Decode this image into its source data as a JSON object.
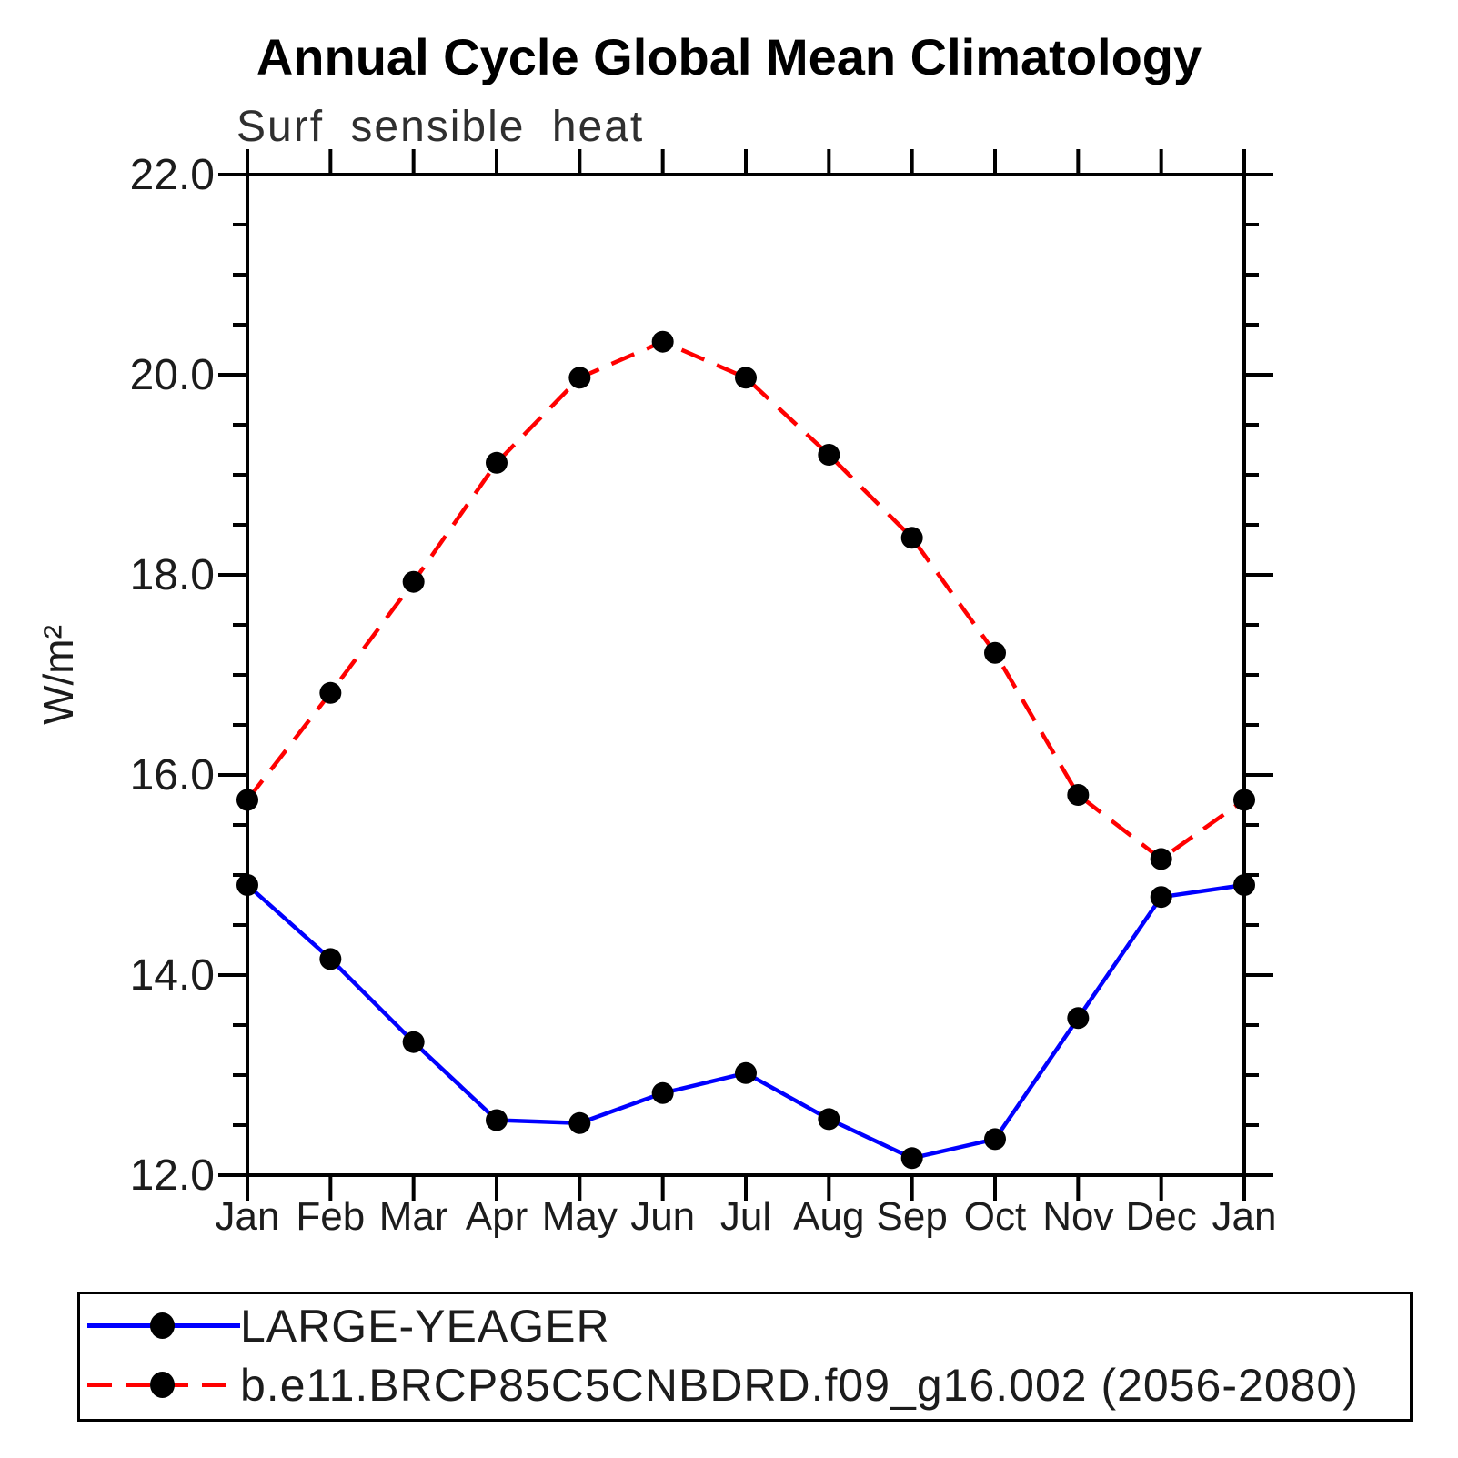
{
  "chart_data": {
    "type": "line",
    "title": "Annual Cycle Global Mean Climatology",
    "subtitle": "Surf sensible heat",
    "xlabel": "",
    "ylabel": "W/m²",
    "ylim": [
      12.0,
      22.0
    ],
    "ytick_major_interval": 2.0,
    "ytick_minor_interval": 0.5,
    "ytick_labels": [
      "12.0",
      "14.0",
      "16.0",
      "18.0",
      "20.0",
      "22.0"
    ],
    "categories": [
      "Jan",
      "Feb",
      "Mar",
      "Apr",
      "May",
      "Jun",
      "Jul",
      "Aug",
      "Sep",
      "Oct",
      "Nov",
      "Dec",
      "Jan"
    ],
    "grid": false,
    "legend_position": "bottom",
    "series": [
      {
        "name": "LARGE-YEAGER",
        "color": "#0000ff",
        "line_style": "solid",
        "marker": "circle",
        "marker_color": "#000000",
        "values": [
          14.9,
          14.16,
          13.33,
          12.55,
          12.52,
          12.82,
          13.02,
          12.56,
          12.17,
          12.36,
          13.57,
          14.78,
          14.9
        ]
      },
      {
        "name": "b.e11.BRCP85C5CNBDRD.f09_g16.002 (2056-2080)",
        "color": "#ff0000",
        "line_style": "dashed",
        "marker": "circle",
        "marker_color": "#000000",
        "values": [
          15.75,
          16.82,
          17.93,
          19.12,
          19.97,
          20.33,
          19.97,
          19.2,
          18.37,
          17.22,
          15.8,
          15.16,
          15.75
        ]
      }
    ]
  }
}
